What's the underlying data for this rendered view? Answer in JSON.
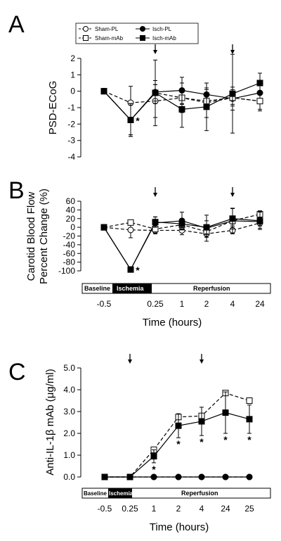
{
  "panels": {
    "A": {
      "letter": "A"
    },
    "B": {
      "letter": "B"
    },
    "C": {
      "letter": "C"
    }
  },
  "legend": {
    "sham_pl": "Sham-PL",
    "isch_pl": "Isch-PL",
    "sham_mab": "Sham-mAb",
    "isch_mab": "Isch-mAb"
  },
  "timeline_ab": {
    "baseline": "Baseline",
    "ischemia": "Ischemia",
    "reperfusion": "Reperfusion"
  },
  "timeline_c": {
    "baseline": "Baseline",
    "ischemia": "Ischemia",
    "reperfusion": "Reperfusion"
  },
  "x_title_b": "Time (hours)",
  "x_title_c": "Time (hours)",
  "colors": {
    "line": "#000000",
    "open_fill": "#ffffff",
    "filled": "#000000"
  },
  "chart_data": [
    {
      "panel": "A",
      "type": "line",
      "ylabel": "PSD-ECoG",
      "ylim": [
        -4,
        2
      ],
      "yticks": [
        -4,
        -3,
        -2,
        -1,
        0,
        1,
        2
      ],
      "x_positions": [
        "-0.5",
        "0",
        "0.25",
        "1",
        "2",
        "4",
        "24"
      ],
      "arrow_at": [
        "0.25",
        "4"
      ],
      "star_at": [
        "0"
      ],
      "series": [
        {
          "name": "Sham-PL",
          "marker": "circle-open",
          "dash": true,
          "values": [
            0,
            -0.7,
            -0.6,
            -0.4,
            -0.7,
            -0.4,
            -0.6
          ],
          "err": [
            0,
            1.0,
            1.0,
            0.9,
            0.9,
            0.5,
            0.6
          ]
        },
        {
          "name": "Isch-PL",
          "marker": "circle-filled",
          "dash": false,
          "values": [
            0,
            -1.75,
            -0.05,
            0.05,
            -0.2,
            -0.45,
            -0.1
          ],
          "err": [
            0,
            1.0,
            0.7,
            0.8,
            0.3,
            0.7,
            0.5
          ]
        },
        {
          "name": "Sham-mAb",
          "marker": "square-open",
          "dash": true,
          "values": [
            0,
            -1.75,
            -0.1,
            -0.4,
            -0.6,
            -0.4,
            -0.6
          ],
          "err": [
            0,
            0.9,
            0.5,
            0.4,
            0.5,
            0.4,
            0.5
          ]
        },
        {
          "name": "Isch-mAb",
          "marker": "square-filled",
          "dash": false,
          "values": [
            0,
            -1.75,
            -0.1,
            -1.1,
            -0.95,
            -0.15,
            0.5
          ],
          "err": [
            0,
            1.0,
            2.0,
            1.1,
            1.45,
            2.4,
            0.6
          ]
        }
      ]
    },
    {
      "panel": "B",
      "type": "line",
      "ylabel": "Carotid Blood Flow\nPercent Change (%)",
      "ylim": [
        -100,
        60
      ],
      "yticks": [
        -100,
        -80,
        -60,
        -40,
        -20,
        0,
        20,
        40,
        60
      ],
      "x_positions": [
        "-0.5",
        "0",
        "0.25",
        "1",
        "2",
        "4",
        "24"
      ],
      "xtick_labels": [
        "-0.5",
        "0.25",
        "1",
        "2",
        "4",
        "24"
      ],
      "arrow_at": [
        "0.25",
        "4"
      ],
      "star_at": [
        "0"
      ],
      "series": [
        {
          "name": "Sham-PL",
          "marker": "circle-open",
          "dash": true,
          "values": [
            0,
            -6,
            -7,
            -7,
            -15,
            -7,
            10
          ],
          "err": [
            0,
            18,
            8,
            10,
            8,
            8,
            7
          ]
        },
        {
          "name": "Isch-PL",
          "marker": "circle-filled",
          "dash": false,
          "values": [
            0,
            -97,
            10,
            15,
            -2,
            15,
            13
          ],
          "err": [
            0,
            0,
            14,
            20,
            30,
            28,
            15
          ]
        },
        {
          "name": "Sham-mAb",
          "marker": "square-open",
          "dash": true,
          "values": [
            0,
            11,
            -4,
            6,
            -10,
            15,
            30
          ],
          "err": [
            0,
            0,
            10,
            12,
            10,
            10,
            8
          ]
        },
        {
          "name": "Isch-mAb",
          "marker": "square-filled",
          "dash": false,
          "values": [
            0,
            -97,
            12,
            8,
            0,
            20,
            15
          ],
          "err": [
            0,
            0,
            12,
            12,
            15,
            24,
            20
          ]
        }
      ]
    },
    {
      "panel": "C",
      "type": "line",
      "ylabel": "Anti-IL-1β mAb (μg/ml)",
      "ylim": [
        0,
        5
      ],
      "yticks": [
        "0.0",
        "1.0",
        "2.0",
        "3.0",
        "4.0",
        "5.0"
      ],
      "x_positions": [
        "-0.5",
        "0.25",
        "1",
        "2",
        "4",
        "24",
        "25"
      ],
      "arrow_at": [
        "0.25",
        "4"
      ],
      "star_at": [
        "1",
        "2",
        "4",
        "24",
        "25"
      ],
      "series": [
        {
          "name": "Sham-PL",
          "marker": "circle-open",
          "dash": true,
          "values": [
            0,
            0,
            0,
            0,
            0,
            0,
            0
          ],
          "err": [
            0,
            0,
            0,
            0,
            0,
            0,
            0
          ]
        },
        {
          "name": "Isch-PL",
          "marker": "circle-filled",
          "dash": false,
          "values": [
            0,
            0,
            0,
            0,
            0,
            0,
            0
          ],
          "err": [
            0,
            0,
            0,
            0,
            0,
            0,
            0
          ]
        },
        {
          "name": "Sham-mAb",
          "marker": "square-open",
          "dash": true,
          "values": [
            0,
            0,
            1.25,
            2.75,
            2.8,
            3.85,
            3.5
          ],
          "err": [
            0,
            0,
            0,
            0,
            0,
            0,
            0
          ]
        },
        {
          "name": "Isch-mAb",
          "marker": "square-filled",
          "dash": false,
          "values": [
            0,
            0,
            0.95,
            2.35,
            2.55,
            2.95,
            2.65
          ],
          "err": [
            0,
            0,
            0.3,
            0.55,
            0.65,
            0.95,
            0.65
          ]
        }
      ]
    }
  ]
}
